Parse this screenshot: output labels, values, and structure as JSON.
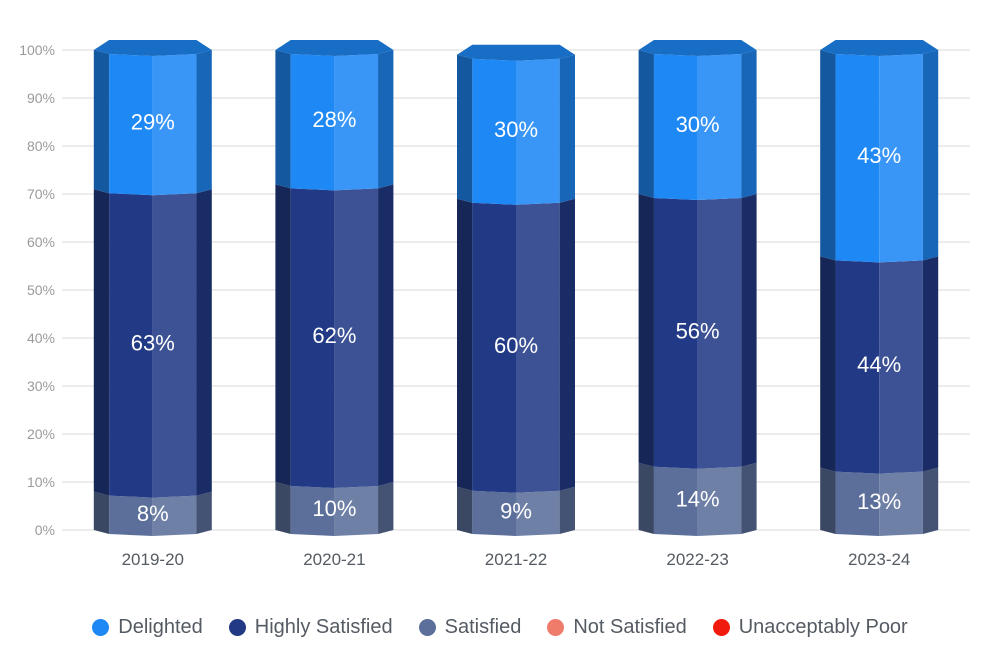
{
  "chart_data": {
    "type": "bar",
    "stacked": true,
    "style": "3d-cylinder",
    "categories": [
      "2019-20",
      "2020-21",
      "2021-22",
      "2022-23",
      "2023-24"
    ],
    "series": [
      {
        "name": "Delighted",
        "color": "#1e88f5",
        "values": [
          29,
          28,
          30,
          30,
          43
        ],
        "labels": [
          "29%",
          "28%",
          "30%",
          "30%",
          "43%"
        ]
      },
      {
        "name": "Highly Satisfied",
        "color": "#223a86",
        "values": [
          63,
          62,
          60,
          56,
          44
        ],
        "labels": [
          "63%",
          "62%",
          "60%",
          "56%",
          "44%"
        ]
      },
      {
        "name": "Satisfied",
        "color": "#5b6f9a",
        "values": [
          8,
          10,
          9,
          14,
          13
        ],
        "labels": [
          "8%",
          "10%",
          "9%",
          "14%",
          "13%"
        ]
      },
      {
        "name": "Not Satisfied",
        "color": "#ef7b6b",
        "values": [
          0,
          0,
          0,
          0,
          0
        ],
        "labels": [
          "",
          "",
          "",
          "",
          ""
        ]
      },
      {
        "name": "Unacceptably Poor",
        "color": "#f01b0e",
        "values": [
          0,
          0,
          0,
          0,
          0
        ],
        "labels": [
          "",
          "",
          "",
          "",
          ""
        ]
      }
    ],
    "yticks": [
      "0%",
      "10%",
      "20%",
      "30%",
      "40%",
      "50%",
      "60%",
      "70%",
      "80%",
      "90%",
      "100%"
    ],
    "ylim": [
      0,
      100
    ],
    "grid": true,
    "legend_position": "bottom"
  }
}
